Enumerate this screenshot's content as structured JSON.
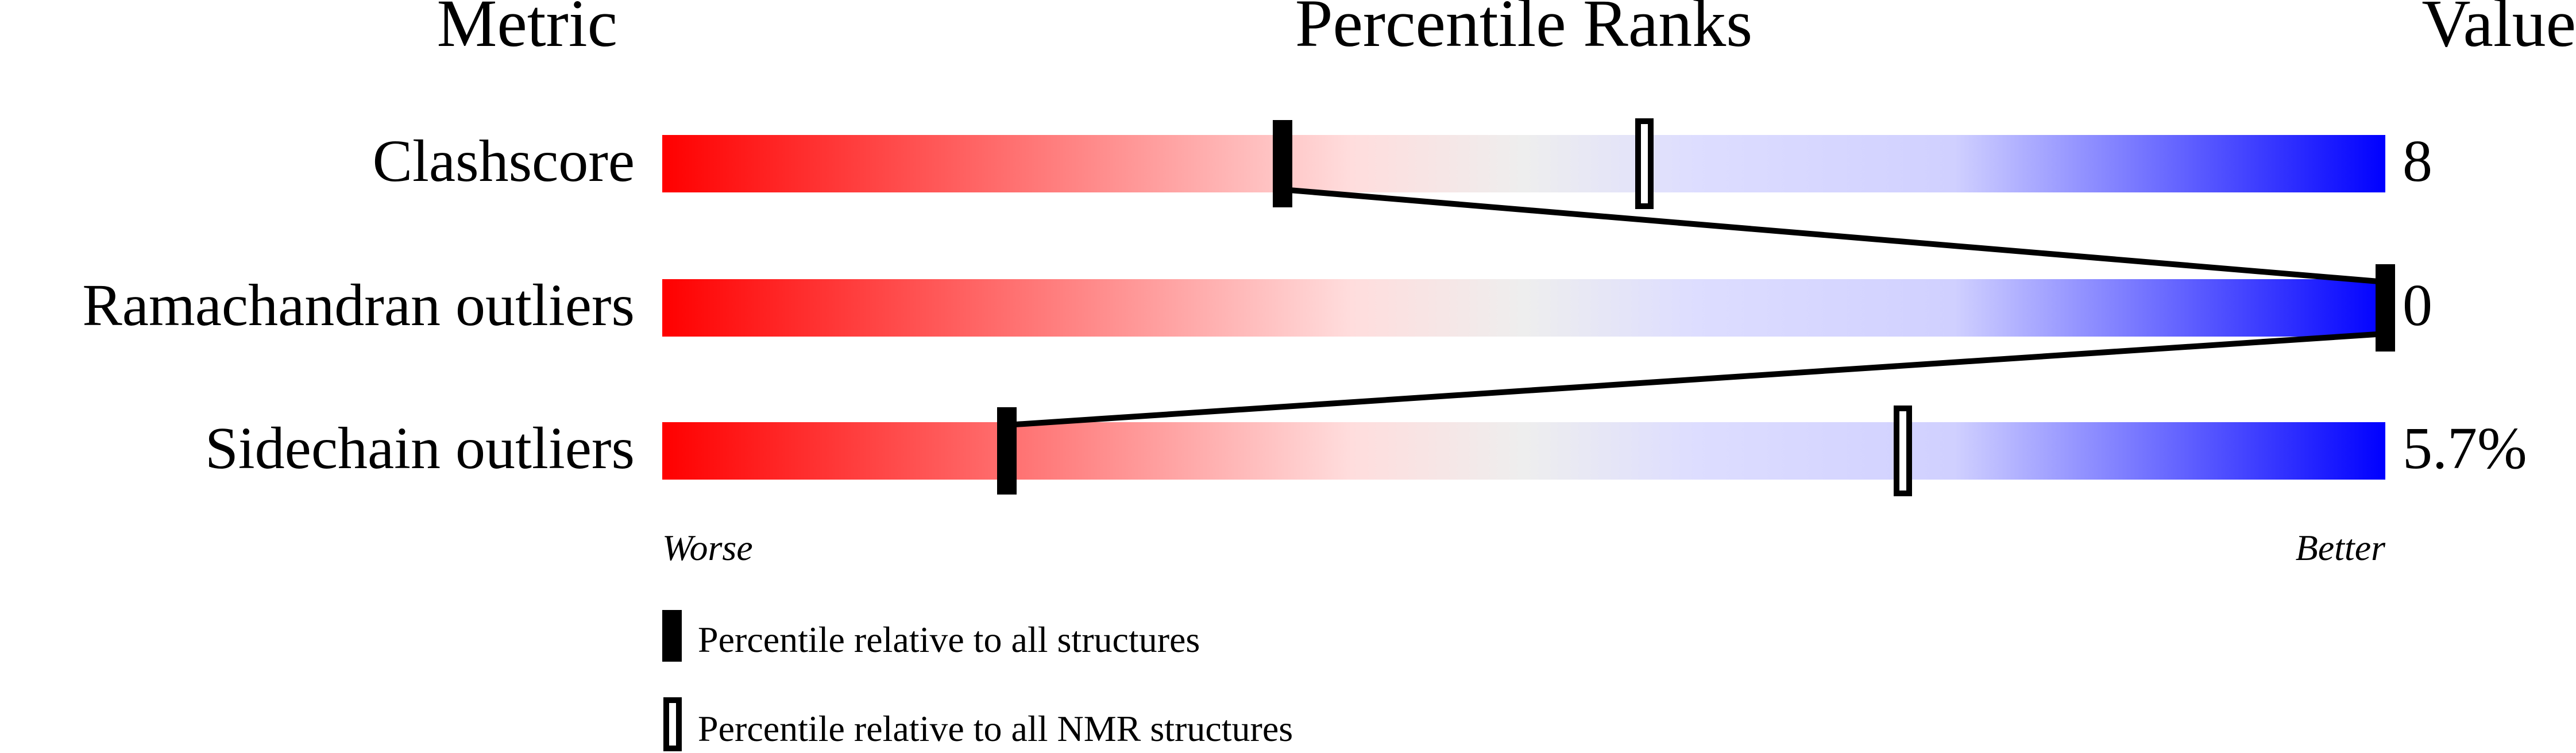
{
  "chart_data": {
    "type": "bar",
    "headers": {
      "metric": "Metric",
      "percentile": "Percentile Ranks",
      "value": "Value"
    },
    "xlim": [
      0,
      100
    ],
    "rows": [
      {
        "metric": "Clashscore",
        "value": "8",
        "percentile_all": 36,
        "percentile_nmr": 57
      },
      {
        "metric": "Ramachandran outliers",
        "value": "0",
        "percentile_all": 100,
        "percentile_nmr": null
      },
      {
        "metric": "Sidechain outliers",
        "value": "5.7%",
        "percentile_all": 20,
        "percentile_nmr": 72
      }
    ],
    "axis_labels": {
      "worse": "Worse",
      "better": "Better"
    },
    "legend": [
      {
        "marker": "filled",
        "label": "Percentile relative to all structures"
      },
      {
        "marker": "open",
        "label": "Percentile relative to all NMR structures"
      }
    ],
    "gradient_colors": [
      "#ff0000",
      "#ffdddd",
      "#eeeeee",
      "#ddddff",
      "#0000ff"
    ]
  }
}
